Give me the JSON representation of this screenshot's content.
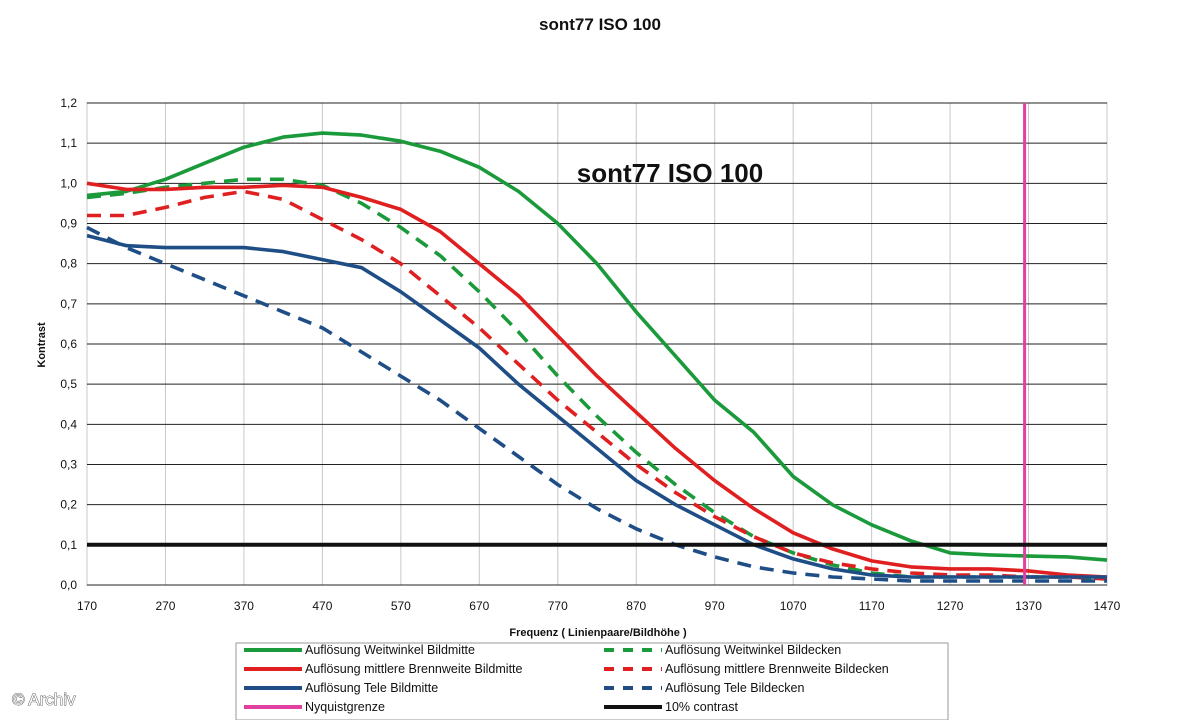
{
  "chart_data": {
    "type": "line",
    "title": "sont77 ISO 100",
    "inner_title": "sont77 ISO 100",
    "xlabel": "Frequenz ( Linienpaare/Bildhöhe )",
    "ylabel": "Kontrast",
    "xlim": [
      170,
      1470
    ],
    "ylim": [
      0,
      1.2
    ],
    "x_ticks": [
      "170",
      "270",
      "370",
      "470",
      "570",
      "670",
      "770",
      "870",
      "970",
      "1070",
      "1170",
      "1270",
      "1370",
      "1470"
    ],
    "y_ticks": [
      "0,0",
      "0,1",
      "0,2",
      "0,3",
      "0,4",
      "0,5",
      "0,6",
      "0,7",
      "0,8",
      "0,9",
      "1,0",
      "1,1",
      "1,2"
    ],
    "grid": "horizontal",
    "legend_position": "bottom",
    "series": [
      {
        "name": "Auflösung Weitwinkel Bildmitte",
        "color": "#1a9a3a",
        "dash": "solid",
        "x": [
          170,
          220,
          270,
          320,
          370,
          420,
          470,
          520,
          570,
          620,
          670,
          720,
          770,
          820,
          870,
          920,
          970,
          1020,
          1070,
          1120,
          1170,
          1220,
          1270,
          1320,
          1370,
          1420,
          1470
        ],
        "y": [
          0.97,
          0.98,
          1.01,
          1.05,
          1.09,
          1.115,
          1.125,
          1.12,
          1.105,
          1.08,
          1.04,
          0.98,
          0.9,
          0.8,
          0.68,
          0.57,
          0.46,
          0.38,
          0.27,
          0.2,
          0.15,
          0.11,
          0.08,
          0.075,
          0.072,
          0.07,
          0.062
        ]
      },
      {
        "name": "Auflösung Weitwinkel Bildecken",
        "color": "#1a9a3a",
        "dash": "dashed",
        "x": [
          170,
          220,
          270,
          320,
          370,
          420,
          470,
          520,
          570,
          620,
          670,
          720,
          770,
          820,
          870,
          920,
          970,
          1020,
          1070,
          1120,
          1170,
          1220,
          1270,
          1320,
          1370,
          1420,
          1470
        ],
        "y": [
          0.965,
          0.975,
          0.99,
          1.0,
          1.01,
          1.01,
          0.995,
          0.95,
          0.89,
          0.82,
          0.73,
          0.63,
          0.52,
          0.42,
          0.33,
          0.25,
          0.18,
          0.12,
          0.08,
          0.05,
          0.03,
          0.02,
          0.02,
          0.02,
          0.02,
          0.02,
          0.015
        ]
      },
      {
        "name": "Auflösung mittlere Brennweite Bildmitte",
        "color": "#e02020",
        "dash": "solid",
        "x": [
          170,
          220,
          270,
          320,
          370,
          420,
          470,
          520,
          570,
          620,
          670,
          720,
          770,
          820,
          870,
          920,
          970,
          1020,
          1070,
          1120,
          1170,
          1220,
          1270,
          1320,
          1370,
          1420,
          1470
        ],
        "y": [
          1.0,
          0.985,
          0.985,
          0.99,
          0.99,
          0.995,
          0.99,
          0.965,
          0.935,
          0.88,
          0.8,
          0.72,
          0.62,
          0.52,
          0.43,
          0.34,
          0.26,
          0.19,
          0.13,
          0.09,
          0.06,
          0.045,
          0.04,
          0.04,
          0.035,
          0.025,
          0.02
        ]
      },
      {
        "name": "Auflösung mittlere Brennweite Bildecken",
        "color": "#e02020",
        "dash": "dashed",
        "x": [
          170,
          220,
          270,
          320,
          370,
          420,
          470,
          520,
          570,
          620,
          670,
          720,
          770,
          820,
          870,
          920,
          970,
          1020,
          1070,
          1120,
          1170,
          1220,
          1270,
          1320,
          1370,
          1420,
          1470
        ],
        "y": [
          0.92,
          0.92,
          0.94,
          0.965,
          0.98,
          0.96,
          0.91,
          0.86,
          0.8,
          0.72,
          0.64,
          0.55,
          0.46,
          0.38,
          0.3,
          0.23,
          0.17,
          0.12,
          0.08,
          0.055,
          0.04,
          0.03,
          0.025,
          0.025,
          0.02,
          0.02,
          0.015
        ]
      },
      {
        "name": "Auflösung Tele Bildmitte",
        "color": "#1f4e86",
        "dash": "solid",
        "x": [
          170,
          220,
          270,
          320,
          370,
          420,
          470,
          520,
          570,
          620,
          670,
          720,
          770,
          820,
          870,
          920,
          970,
          1020,
          1070,
          1120,
          1170,
          1220,
          1270,
          1320,
          1370,
          1420,
          1470
        ],
        "y": [
          0.87,
          0.845,
          0.84,
          0.84,
          0.84,
          0.83,
          0.81,
          0.79,
          0.73,
          0.66,
          0.59,
          0.5,
          0.42,
          0.34,
          0.26,
          0.2,
          0.15,
          0.1,
          0.065,
          0.04,
          0.025,
          0.02,
          0.02,
          0.02,
          0.02,
          0.02,
          0.02
        ]
      },
      {
        "name": "Auflösung Tele Bildecken",
        "color": "#1f4e86",
        "dash": "dashed",
        "x": [
          170,
          220,
          270,
          320,
          370,
          420,
          470,
          520,
          570,
          620,
          670,
          720,
          770,
          820,
          870,
          920,
          970,
          1020,
          1070,
          1120,
          1170,
          1220,
          1270,
          1320,
          1370,
          1420,
          1470
        ],
        "y": [
          0.89,
          0.84,
          0.8,
          0.76,
          0.72,
          0.68,
          0.64,
          0.58,
          0.52,
          0.46,
          0.39,
          0.32,
          0.25,
          0.19,
          0.14,
          0.1,
          0.07,
          0.045,
          0.03,
          0.02,
          0.015,
          0.01,
          0.01,
          0.01,
          0.01,
          0.01,
          0.01
        ]
      },
      {
        "name": "Nyquistgrenze",
        "color": "#e040a0",
        "dash": "solid",
        "x": [
          1365,
          1365
        ],
        "y": [
          0,
          1.2
        ]
      },
      {
        "name": "10% contrast",
        "color": "#111111",
        "dash": "solid",
        "x": [
          170,
          1470
        ],
        "y": [
          0.1,
          0.1
        ]
      }
    ]
  },
  "watermark": "© Archiv"
}
